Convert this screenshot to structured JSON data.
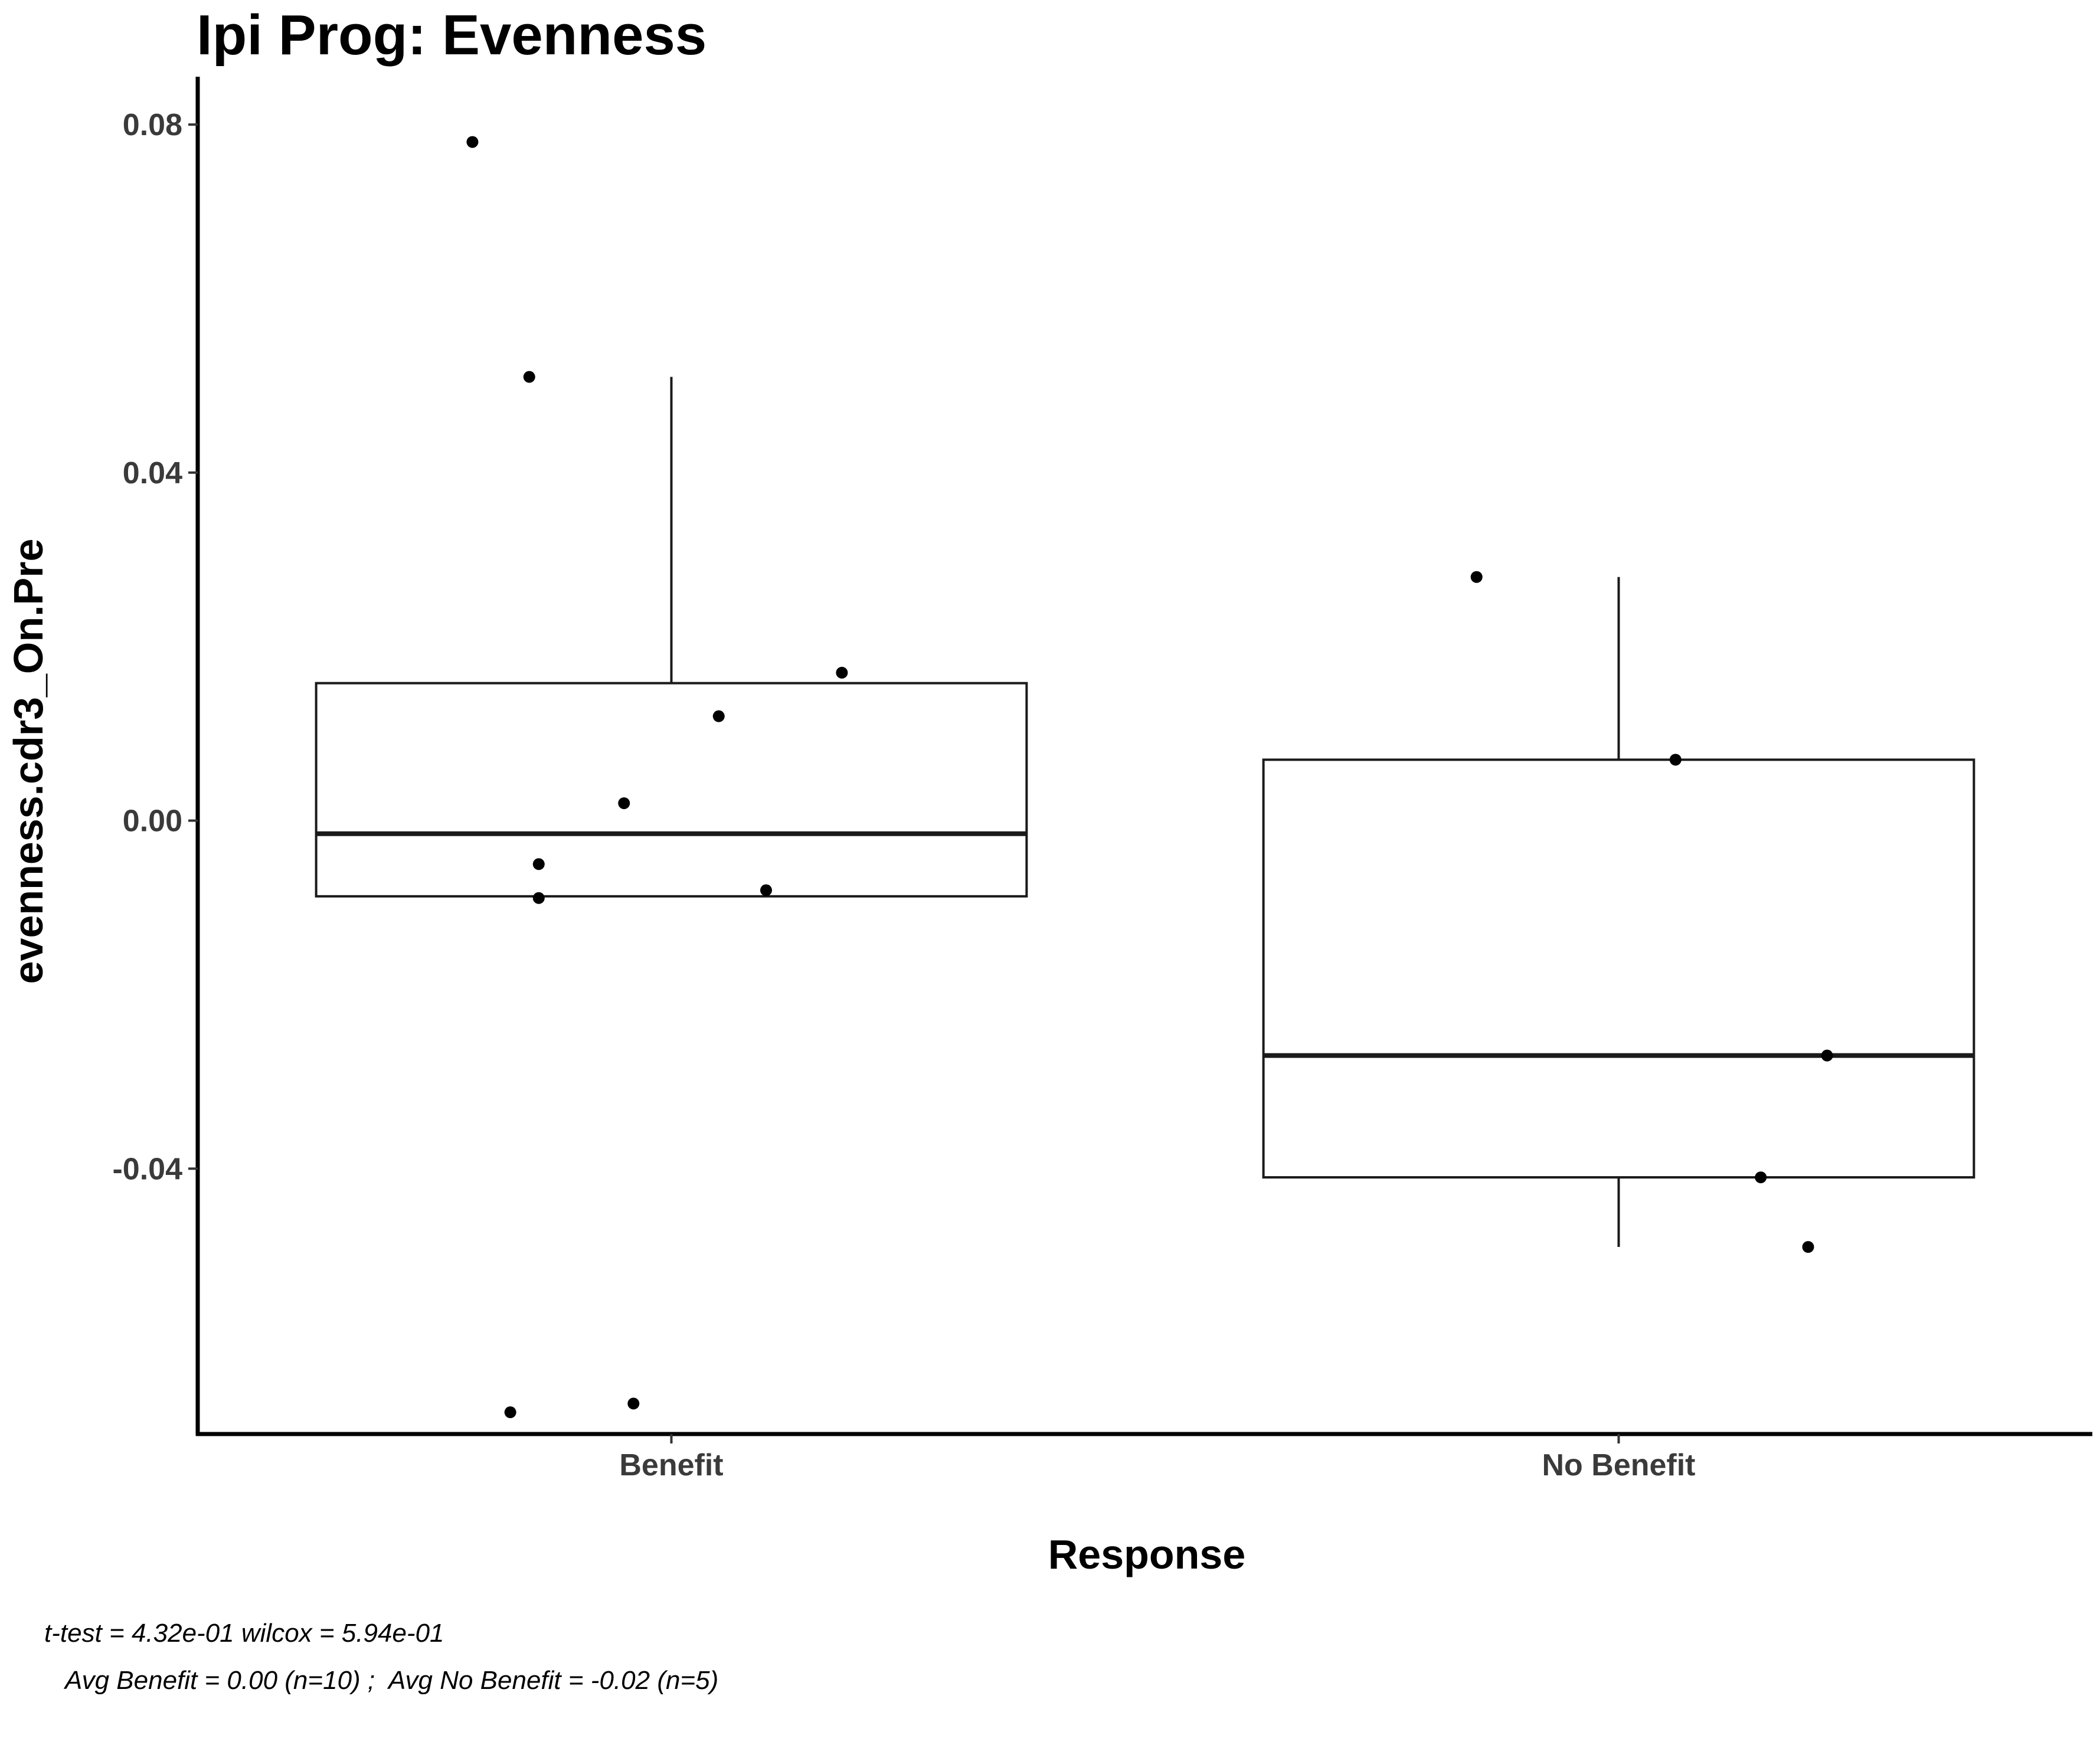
{
  "chart_data": {
    "type": "box",
    "title": "Ipi Prog: Evenness",
    "xlabel": "Response",
    "ylabel": "evenness.cdr3_On.Pre",
    "categories": [
      "Benefit",
      "No Benefit"
    ],
    "ylim": [
      -0.0705,
      0.0855
    ],
    "yticks": [
      -0.04,
      0.0,
      0.04,
      0.08
    ],
    "ytick_labels": [
      "-0.04",
      "0.00",
      "0.04",
      "0.08"
    ],
    "grid": false,
    "boxes": [
      {
        "category": "Benefit",
        "q1": -0.0087,
        "median": -0.0015,
        "q3": 0.0158,
        "whisker_low": -0.0088,
        "whisker_high": 0.051
      },
      {
        "category": "No Benefit",
        "q1": -0.041,
        "median": -0.027,
        "q3": 0.007,
        "whisker_low": -0.049,
        "whisker_high": 0.028
      }
    ],
    "points": [
      {
        "category": "Benefit",
        "jitter": -0.21,
        "y": 0.078
      },
      {
        "category": "Benefit",
        "jitter": -0.15,
        "y": 0.051
      },
      {
        "category": "Benefit",
        "jitter": 0.18,
        "y": 0.017
      },
      {
        "category": "Benefit",
        "jitter": 0.05,
        "y": 0.012
      },
      {
        "category": "Benefit",
        "jitter": -0.05,
        "y": 0.002
      },
      {
        "category": "Benefit",
        "jitter": -0.14,
        "y": -0.005
      },
      {
        "category": "Benefit",
        "jitter": 0.1,
        "y": -0.008
      },
      {
        "category": "Benefit",
        "jitter": -0.14,
        "y": -0.0089
      },
      {
        "category": "Benefit",
        "jitter": -0.17,
        "y": -0.068
      },
      {
        "category": "Benefit",
        "jitter": -0.04,
        "y": -0.067
      },
      {
        "category": "No Benefit",
        "jitter": -0.15,
        "y": 0.028
      },
      {
        "category": "No Benefit",
        "jitter": 0.06,
        "y": 0.007
      },
      {
        "category": "No Benefit",
        "jitter": 0.22,
        "y": -0.027
      },
      {
        "category": "No Benefit",
        "jitter": 0.15,
        "y": -0.041
      },
      {
        "category": "No Benefit",
        "jitter": 0.2,
        "y": -0.049
      }
    ],
    "caption_lines": [
      "t-test = 4.32e-01 wilcox = 5.94e-01",
      "   Avg Benefit = 0.00 (n=10) ;  Avg No Benefit = -0.02 (n=5)"
    ]
  }
}
